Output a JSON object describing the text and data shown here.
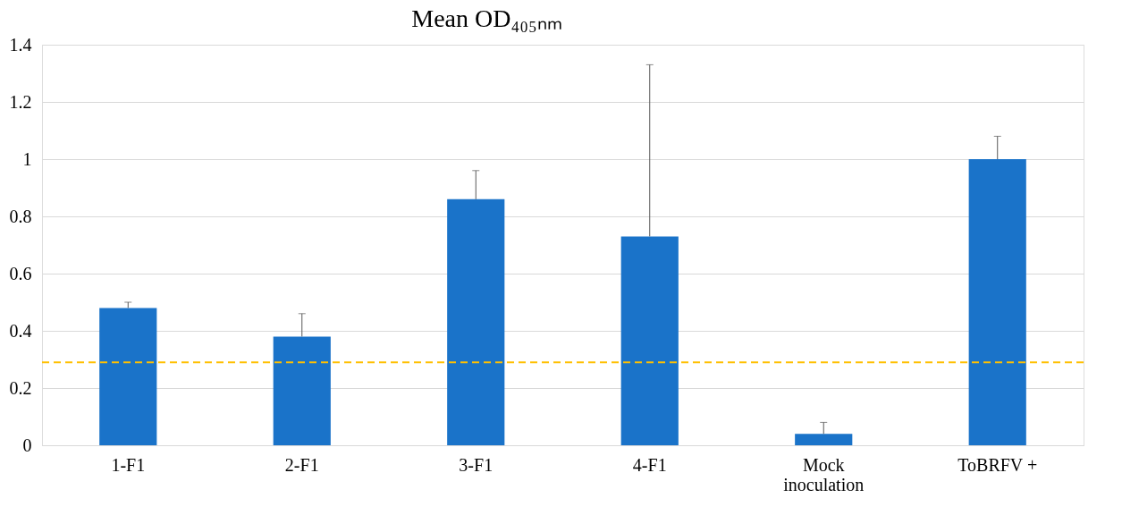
{
  "chart_data": {
    "type": "bar",
    "title": "Mean OD₄₀₅ₙₘ",
    "categories": [
      "1-F1",
      "2-F1",
      "3-F1",
      "4-F1",
      "Mock inoculation",
      "ToBRFV +"
    ],
    "values": [
      0.48,
      0.38,
      0.86,
      0.73,
      0.04,
      1.0
    ],
    "errors": [
      [
        0.48,
        0.5
      ],
      [
        0.38,
        0.46
      ],
      [
        0.86,
        0.96
      ],
      [
        0.73,
        1.33
      ],
      [
        0.04,
        0.08
      ],
      [
        1.0,
        1.08
      ]
    ],
    "color": "#1a73c9",
    "ylim": [
      0,
      1.4
    ],
    "yticks": [
      0,
      0.2,
      0.4,
      0.6,
      0.8,
      1,
      1.2,
      1.4
    ],
    "grid": "y",
    "ref_lines": [
      {
        "axis": "y",
        "value": 0.29,
        "color": "#ffc000",
        "line_style": "dashed"
      }
    ]
  }
}
